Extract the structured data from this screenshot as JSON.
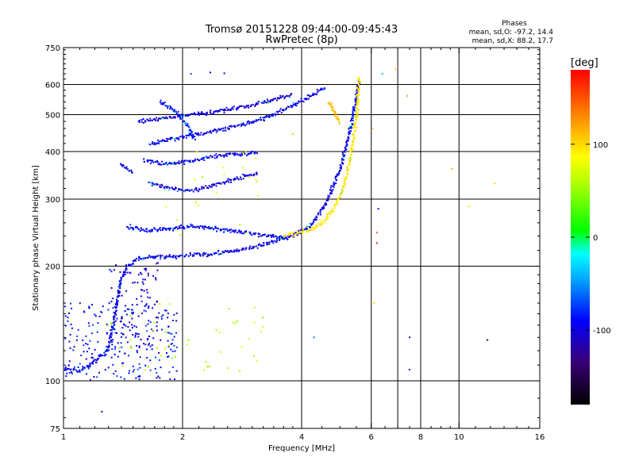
{
  "chart_data": {
    "type": "scatter",
    "title": "Tromsø 20151228 09:44:00-09:45:43",
    "subtitle": "RwPretec (8p)",
    "xlabel": "Frequency [MHz]",
    "ylabel": "Stationary phase Virtual Height [km]",
    "xscale": "log",
    "yscale": "log",
    "xlim": [
      1,
      16
    ],
    "ylim": [
      75,
      750
    ],
    "xticks": [
      1,
      2,
      4,
      6,
      8,
      10,
      16
    ],
    "xtick_labels": [
      "1",
      "2",
      "4",
      "6",
      "8",
      "10",
      "16"
    ],
    "x_gridlines": [
      2,
      4,
      6,
      7,
      8,
      10
    ],
    "yticks": [
      75,
      100,
      200,
      300,
      400,
      500,
      600,
      750
    ],
    "ytick_labels": [
      "75",
      "100",
      "200",
      "300",
      "400",
      "500",
      "600",
      "750"
    ],
    "y_gridlines": [
      100,
      200,
      300,
      400,
      500,
      600
    ],
    "grid": true,
    "stats": {
      "heading": "Phases",
      "line_o": "mean, sd,O: -97.2, 14.4",
      "line_x": "mean, sd,X:  88.2, 17.7"
    },
    "colorbar": {
      "label": "[deg]",
      "range": [
        -180,
        180
      ],
      "ticks": [
        100,
        0,
        -100
      ],
      "tick_labels": [
        "100",
        "0",
        "-100"
      ]
    },
    "traces": [
      {
        "kind": "o",
        "phase": -110,
        "points": [
          [
            1.0,
            108
          ],
          [
            1.1,
            106
          ],
          [
            1.2,
            112
          ],
          [
            1.3,
            122
          ],
          [
            1.35,
            150
          ],
          [
            1.4,
            185
          ],
          [
            1.45,
            200
          ],
          [
            1.55,
            210
          ],
          [
            1.8,
            212
          ],
          [
            2.2,
            214
          ],
          [
            2.6,
            218
          ],
          [
            3.0,
            224
          ],
          [
            3.4,
            232
          ],
          [
            3.8,
            240
          ],
          [
            4.2,
            255
          ],
          [
            4.6,
            290
          ],
          [
            5.0,
            360
          ],
          [
            5.3,
            450
          ],
          [
            5.5,
            560
          ],
          [
            5.6,
            620
          ]
        ]
      },
      {
        "kind": "o",
        "phase": -105,
        "points": [
          [
            1.45,
            255
          ],
          [
            1.6,
            248
          ],
          [
            1.8,
            250
          ],
          [
            2.1,
            255
          ],
          [
            2.5,
            250
          ],
          [
            2.9,
            245
          ],
          [
            3.3,
            240
          ],
          [
            3.7,
            237
          ]
        ]
      },
      {
        "kind": "o",
        "phase": -110,
        "points": [
          [
            1.65,
            420
          ],
          [
            1.9,
            432
          ],
          [
            2.2,
            445
          ],
          [
            2.6,
            460
          ],
          [
            3.0,
            478
          ],
          [
            3.4,
            500
          ],
          [
            3.8,
            530
          ],
          [
            4.2,
            560
          ],
          [
            4.6,
            590
          ]
        ]
      },
      {
        "kind": "o",
        "phase": -112,
        "points": [
          [
            1.65,
            330
          ],
          [
            1.85,
            320
          ],
          [
            2.05,
            315
          ],
          [
            2.3,
            322
          ],
          [
            2.6,
            335
          ],
          [
            2.9,
            345
          ],
          [
            3.1,
            350
          ]
        ]
      },
      {
        "kind": "o",
        "phase": -108,
        "points": [
          [
            1.6,
            380
          ],
          [
            1.8,
            372
          ],
          [
            2.0,
            375
          ],
          [
            2.3,
            385
          ],
          [
            2.6,
            392
          ],
          [
            2.9,
            395
          ],
          [
            3.1,
            398
          ]
        ]
      },
      {
        "kind": "o",
        "phase": -115,
        "points": [
          [
            1.55,
            478
          ],
          [
            1.75,
            488
          ],
          [
            2.0,
            497
          ],
          [
            2.3,
            505
          ],
          [
            2.6,
            515
          ],
          [
            3.0,
            530
          ],
          [
            3.4,
            548
          ],
          [
            3.8,
            565
          ]
        ]
      },
      {
        "kind": "o",
        "phase": -100,
        "points": [
          [
            1.75,
            540
          ],
          [
            1.85,
            525
          ],
          [
            1.95,
            500
          ],
          [
            2.05,
            470
          ],
          [
            2.1,
            450
          ],
          [
            2.15,
            430
          ]
        ]
      },
      {
        "kind": "o",
        "phase": -118,
        "points": [
          [
            1.4,
            370
          ],
          [
            1.45,
            360
          ],
          [
            1.5,
            355
          ]
        ]
      },
      {
        "kind": "x",
        "phase": 95,
        "points": [
          [
            3.6,
            240
          ],
          [
            4.0,
            245
          ],
          [
            4.4,
            255
          ],
          [
            4.8,
            280
          ],
          [
            5.1,
            320
          ],
          [
            5.3,
            380
          ],
          [
            5.45,
            450
          ],
          [
            5.55,
            540
          ],
          [
            5.6,
            630
          ]
        ]
      },
      {
        "kind": "x",
        "phase": 110,
        "points": [
          [
            4.7,
            540
          ],
          [
            4.85,
            505
          ],
          [
            5.0,
            475
          ]
        ]
      }
    ],
    "clouds": [
      {
        "kind": "o",
        "phase": -100,
        "count": 220,
        "freq": [
          1.0,
          1.95
        ],
        "height": [
          100,
          160
        ]
      },
      {
        "kind": "o",
        "phase": -115,
        "count": 110,
        "freq": [
          1.3,
          1.75
        ],
        "height": [
          120,
          210
        ]
      },
      {
        "kind": "x",
        "phase": 60,
        "count": 45,
        "freq": [
          1.2,
          3.2
        ],
        "height": [
          105,
          160
        ]
      },
      {
        "kind": "x",
        "phase": 80,
        "count": 22,
        "freq": [
          1.8,
          3.2
        ],
        "height": [
          230,
          400
        ]
      }
    ],
    "isolated": [
      {
        "x": 2.1,
        "y": 640,
        "phase": -90
      },
      {
        "x": 2.35,
        "y": 645,
        "phase": -110
      },
      {
        "x": 2.55,
        "y": 642,
        "phase": -120
      },
      {
        "x": 1.25,
        "y": 83,
        "phase": -110
      },
      {
        "x": 6.2,
        "y": 245,
        "phase": 150
      },
      {
        "x": 6.2,
        "y": 230,
        "phase": 170
      },
      {
        "x": 6.25,
        "y": 283,
        "phase": -110
      },
      {
        "x": 6.1,
        "y": 160,
        "phase": 100
      },
      {
        "x": 4.3,
        "y": 130,
        "phase": -70
      },
      {
        "x": 7.5,
        "y": 130,
        "phase": -120
      },
      {
        "x": 7.5,
        "y": 107,
        "phase": -110
      },
      {
        "x": 7.4,
        "y": 560,
        "phase": 120
      },
      {
        "x": 6.9,
        "y": 660,
        "phase": 100
      },
      {
        "x": 9.6,
        "y": 360,
        "phase": 110
      },
      {
        "x": 10.6,
        "y": 287,
        "phase": 100
      },
      {
        "x": 12.3,
        "y": 330,
        "phase": 100
      },
      {
        "x": 11.8,
        "y": 128,
        "phase": -150
      },
      {
        "x": 6.05,
        "y": 460,
        "phase": 100
      },
      {
        "x": 6.4,
        "y": 640,
        "phase": -40
      },
      {
        "x": 3.8,
        "y": 445,
        "phase": 110
      }
    ]
  }
}
